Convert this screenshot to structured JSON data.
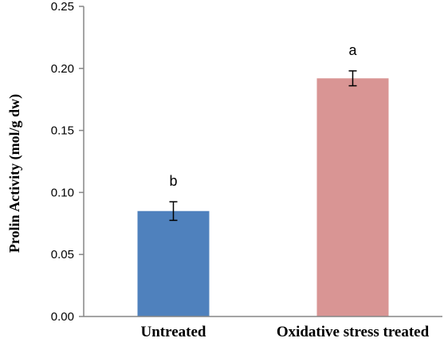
{
  "chart_data": {
    "type": "bar",
    "title": "",
    "xlabel": "",
    "ylabel": "Prolin Activity (mol/g dw)",
    "ylim": [
      0,
      0.25
    ],
    "yticks": [
      "0.00",
      "0.05",
      "0.10",
      "0.15",
      "0.20",
      "0.25"
    ],
    "ytick_values": [
      0,
      0.05,
      0.1,
      0.15,
      0.2,
      0.25
    ],
    "grid": false,
    "categories": [
      "Untreated",
      "Oxidative stress treated"
    ],
    "values": [
      0.085,
      0.192
    ],
    "error": [
      0.0075,
      0.006
    ],
    "annotations": [
      "b",
      "a"
    ],
    "colors": [
      "#4f81bd",
      "#d99594"
    ]
  }
}
